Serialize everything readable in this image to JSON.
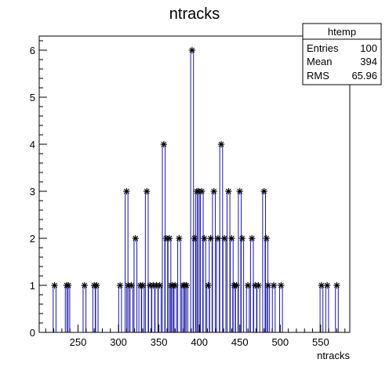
{
  "chart_data": {
    "type": "bar",
    "title": "ntracks",
    "xlabel": "ntracks",
    "ylabel": "",
    "xlim": [
      202,
      586
    ],
    "ylim": [
      0,
      6.3
    ],
    "x_ticks": [
      250,
      300,
      350,
      400,
      450,
      500,
      550
    ],
    "y_ticks": [
      0,
      1,
      2,
      3,
      4,
      5,
      6
    ],
    "grid": false,
    "legend": "none",
    "stats_box": {
      "title": "htemp",
      "rows": [
        {
          "label": "Entries",
          "value": "100"
        },
        {
          "label": "Mean",
          "value": "394"
        },
        {
          "label": "RMS",
          "value": "65.96"
        }
      ]
    },
    "series": [
      {
        "x": [
          221,
          236,
          238,
          258,
          270,
          273,
          302,
          310,
          312,
          316,
          321,
          327,
          330,
          335,
          339,
          343,
          347,
          351,
          356,
          359,
          363,
          365,
          367,
          370,
          375,
          380,
          382,
          384,
          391,
          394,
          397,
          399,
          403,
          406,
          411,
          414,
          418,
          423,
          427,
          431,
          436,
          440,
          443,
          446,
          450,
          453,
          460,
          465,
          469,
          473,
          480,
          483,
          485,
          492,
          501,
          551,
          558,
          570
        ],
        "values": [
          1,
          1,
          1,
          1,
          1,
          1,
          1,
          3,
          1,
          1,
          2,
          1,
          1,
          3,
          1,
          1,
          1,
          1,
          4,
          2,
          2,
          1,
          1,
          1,
          2,
          1,
          1,
          1,
          6,
          2,
          3,
          3,
          3,
          2,
          1,
          2,
          3,
          2,
          4,
          2,
          3,
          2,
          1,
          1,
          3,
          2,
          1,
          2,
          1,
          1,
          3,
          2,
          1,
          1,
          1,
          1,
          1,
          1
        ]
      }
    ],
    "colors": {
      "bar": "#1a1aa8",
      "marker": "#000000",
      "frame": "#000000"
    }
  }
}
